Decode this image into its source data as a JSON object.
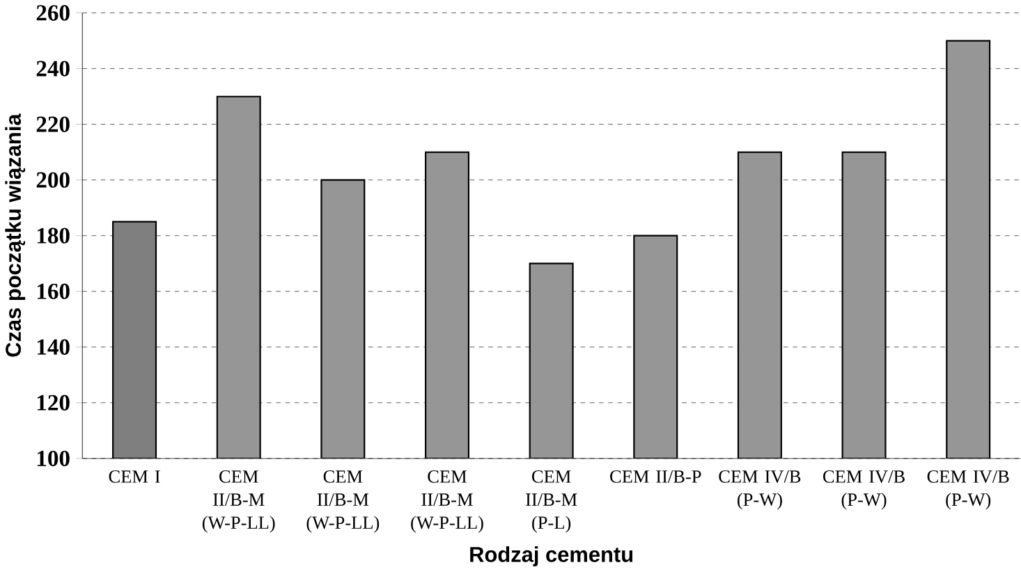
{
  "chart_data": {
    "type": "bar",
    "xlabel": "Rodzaj cementu",
    "ylabel": "Czas początku wiązania",
    "categories": [
      "CEM I",
      "CEM II/B-M (W-P-LL)",
      "CEM II/B-M (W-P-LL)",
      "CEM II/B-M (W-P-LL)",
      "CEM II/B-M (P-L)",
      "CEM II/B-P",
      "CEM IV/B (P-W)",
      "CEM IV/B (P-W)",
      "CEM IV/B (P-W)"
    ],
    "values": [
      185,
      230,
      200,
      210,
      170,
      180,
      210,
      210,
      250
    ],
    "colors": [
      "#7f7f7f",
      "#969696",
      "#969696",
      "#969696",
      "#969696",
      "#969696",
      "#969696",
      "#969696",
      "#969696"
    ],
    "ylim": [
      100,
      260
    ],
    "yticks": [
      100,
      120,
      140,
      160,
      180,
      200,
      220,
      240,
      260
    ],
    "grid": "y"
  }
}
